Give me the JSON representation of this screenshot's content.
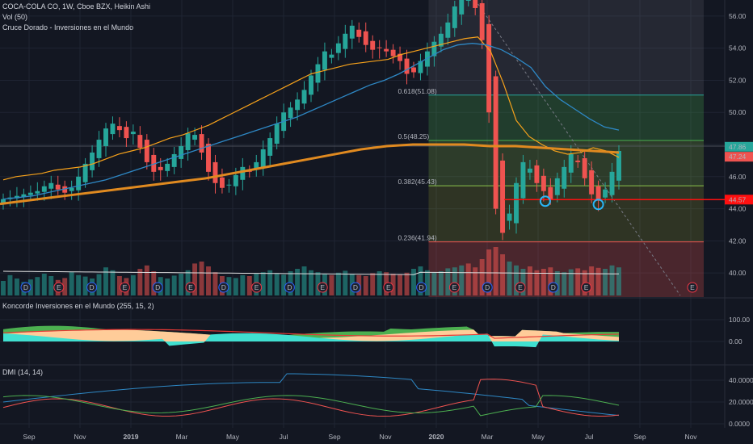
{
  "legends": {
    "main": "COCA-COLA CO, 1W, Cboe BZX, Heikin Ashi",
    "vol": "Vol (50)",
    "study": "Cruce Dorado - Inversiones en el Mundo",
    "koncorde": "Koncorde Inversiones en el Mundo (255, 15, 2)",
    "dmi": "DMI (14, 14)"
  },
  "colors": {
    "bg": "#131722",
    "up": "#26a69a",
    "down": "#ef5350",
    "orange": "#f7a21b",
    "blue": "#2e88c5",
    "grid": "#1f2433",
    "white": "#e0e0e0",
    "red_line": "#ff1010",
    "green_fill": "#4caf50",
    "cyan_fill": "#40e0d0",
    "peach_fill": "#ffcc99"
  },
  "chart_data": [
    {
      "type": "candlestick",
      "panel": "price",
      "title": "COCA-COLA CO, 1W, Cboe BZX, Heikin Ashi",
      "x_ticks": [
        "Sep",
        "Nov",
        "2019",
        "Mar",
        "May",
        "Jul",
        "Sep",
        "Nov",
        "2020",
        "Mar",
        "May",
        "Jul",
        "Sep",
        "Nov"
      ],
      "y_ticks": [
        "40.00",
        "42.00",
        "44.00",
        "46.00",
        "48.00",
        "50.00",
        "52.00",
        "54.00",
        "56.00"
      ],
      "ylim": [
        38.5,
        57.0
      ],
      "price_labels": {
        "last_up": "47.86",
        "last_down": "47.24",
        "support": "44.57"
      },
      "support_level": 44.57,
      "fibonacci": [
        {
          "label": "0.618(51.08)",
          "value": 51.08
        },
        {
          "label": "0.5(48.25)",
          "value": 48.25
        },
        {
          "label": "0.382(45.43)",
          "value": 45.43
        },
        {
          "label": "0.236(41.94)",
          "value": 41.94
        }
      ],
      "event_markers": [
        "D",
        "E",
        "D",
        "E",
        "D",
        "E",
        "D",
        "E",
        "D",
        "E",
        "D",
        "E",
        "D",
        "E",
        "D",
        "E",
        "D",
        "E",
        "E"
      ],
      "candles_weekly_close": [
        44.6,
        44.7,
        44.8,
        44.9,
        45.0,
        45.1,
        45.4,
        45.6,
        45.2,
        45.0,
        45.3,
        46.0,
        46.8,
        47.5,
        48.3,
        49.0,
        49.3,
        48.9,
        48.4,
        48.8,
        47.8,
        46.9,
        46.3,
        46.4,
        46.8,
        47.4,
        47.9,
        48.7,
        48.6,
        47.5,
        46.3,
        45.6,
        45.3,
        45.5,
        46.1,
        46.6,
        46.3,
        46.9,
        47.7,
        48.4,
        49.3,
        50.0,
        50.3,
        50.8,
        51.4,
        52.3,
        53.0,
        53.8,
        53.6,
        54.3,
        54.9,
        55.4,
        54.7,
        54.2,
        53.9,
        54.0,
        53.8,
        53.5,
        53.2,
        52.4,
        52.5,
        53.2,
        53.8,
        54.4,
        54.9,
        55.6,
        56.6,
        57.3,
        57.1,
        56.5,
        54.5,
        50.0,
        44.0,
        42.5,
        43.7,
        45.6,
        46.9,
        46.5,
        45.6,
        45.1,
        44.6,
        45.9,
        46.6,
        47.4,
        46.9,
        45.9,
        44.9,
        44.5,
        45.2,
        46.3,
        47.6
      ],
      "sma_orange": [
        45.8,
        46.0,
        46.1,
        46.2,
        46.4,
        46.5,
        46.6,
        46.8,
        47.1,
        47.4,
        47.6,
        47.8,
        48.1,
        48.4,
        48.6,
        48.9,
        49.2,
        49.6,
        50.0,
        50.4,
        50.8,
        51.2,
        51.6,
        52.0,
        52.4,
        52.6,
        52.8,
        53.0,
        53.1,
        53.2,
        53.3,
        53.6,
        53.8,
        54.0,
        54.2,
        54.4,
        54.6,
        54.7,
        53.8,
        51.8,
        49.5,
        48.5,
        48.0,
        47.6,
        47.4,
        47.5,
        47.8,
        47.6,
        47.2
      ],
      "sma_blue": [
        44.6,
        44.7,
        44.8,
        45.0,
        45.2,
        45.4,
        45.6,
        45.8,
        46.1,
        46.4,
        46.7,
        47.0,
        47.3,
        47.6,
        47.9,
        48.2,
        48.5,
        48.8,
        49.1,
        49.4,
        49.7,
        50.1,
        50.5,
        50.9,
        51.3,
        51.7,
        52.0,
        52.4,
        52.9,
        53.4,
        53.9,
        54.2,
        54.3,
        54.2,
        53.9,
        53.4,
        52.8,
        51.6,
        50.8,
        50.2,
        49.6,
        49.1,
        48.9
      ],
      "sma_200": [
        44.3,
        44.5,
        44.7,
        44.9,
        45.1,
        45.3,
        45.5,
        45.7,
        45.9,
        46.2,
        46.5,
        46.8,
        47.1,
        47.4,
        47.7,
        47.9,
        48.0,
        48.0,
        48.0,
        47.9,
        47.9,
        47.8,
        47.7,
        47.6,
        47.5
      ]
    },
    {
      "type": "bar",
      "panel": "volume",
      "title": "Vol (50)",
      "series": [
        {
          "name": "Vol (50)",
          "values": [
            0.3,
            0.42,
            0.35,
            0.28,
            0.33,
            0.38,
            0.45,
            0.4,
            0.32,
            0.36,
            0.48,
            0.42,
            0.39,
            0.35,
            0.44,
            0.58,
            0.52,
            0.4,
            0.36,
            0.42,
            0.55,
            0.62,
            0.5,
            0.38,
            0.35,
            0.41,
            0.45,
            0.52,
            0.66,
            0.7,
            0.6,
            0.48,
            0.4,
            0.38,
            0.36,
            0.42,
            0.4,
            0.45,
            0.48,
            0.52,
            0.46,
            0.43,
            0.5,
            0.55,
            0.6,
            0.52,
            0.48,
            0.44,
            0.42,
            0.47,
            0.51,
            0.45,
            0.42,
            0.4,
            0.46,
            0.5,
            0.48,
            0.45,
            0.44,
            0.47,
            0.55,
            0.6,
            0.52,
            0.48,
            0.5,
            0.56,
            0.58,
            0.62,
            0.66,
            0.58,
            0.75,
            0.95,
            1.0,
            0.85,
            0.7,
            0.62,
            0.55,
            0.6,
            0.52,
            0.55,
            0.58,
            0.5,
            0.48,
            0.54,
            0.56,
            0.52,
            0.6,
            0.57,
            0.55,
            0.62,
            0.58
          ]
        }
      ]
    },
    {
      "type": "area",
      "panel": "koncorde",
      "title": "Koncorde Inversiones en el Mundo (255, 15, 2)",
      "y_ticks": [
        "100.00",
        "0.00"
      ]
    },
    {
      "type": "line",
      "panel": "dmi",
      "title": "DMI (14, 14)",
      "y_ticks": [
        "40.0000",
        "20.0000",
        "0.0000"
      ]
    }
  ]
}
